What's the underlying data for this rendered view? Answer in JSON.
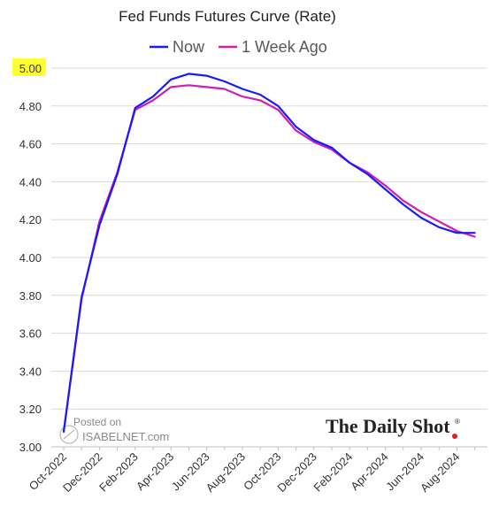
{
  "chart_data": {
    "type": "line",
    "title": "Fed Funds Futures Curve (Rate)",
    "xlabel": "",
    "ylabel": "",
    "x_categories": [
      "Oct-2022",
      "Nov-2022",
      "Dec-2022",
      "Jan-2023",
      "Feb-2023",
      "Mar-2023",
      "Apr-2023",
      "May-2023",
      "Jun-2023",
      "Jul-2023",
      "Aug-2023",
      "Sep-2023",
      "Oct-2023",
      "Nov-2023",
      "Dec-2023",
      "Jan-2024",
      "Feb-2024",
      "Mar-2024",
      "Apr-2024",
      "May-2024",
      "Jun-2024",
      "Jul-2024",
      "Aug-2024",
      "Sep-2024"
    ],
    "x_tick_labels": [
      "Oct-2022",
      "Dec-2022",
      "Feb-2023",
      "Apr-2023",
      "Jun-2023",
      "Aug-2023",
      "Oct-2023",
      "Dec-2023",
      "Feb-2024",
      "Apr-2024",
      "Jun-2024",
      "Aug-2024"
    ],
    "y_tick_labels": [
      "3.00",
      "3.20",
      "3.40",
      "3.60",
      "3.80",
      "4.00",
      "4.20",
      "4.40",
      "4.60",
      "4.80",
      "5.00"
    ],
    "ylim": [
      3.0,
      5.0
    ],
    "grid": true,
    "legend_position": "top",
    "highlighted_tick": "5.00",
    "highlight_color": "#ffff33",
    "series": [
      {
        "name": "Now",
        "color": "#1a1aff",
        "values": [
          3.08,
          3.79,
          4.17,
          4.44,
          4.79,
          4.85,
          4.94,
          4.97,
          4.96,
          4.93,
          4.89,
          4.86,
          4.8,
          4.69,
          4.62,
          4.58,
          4.5,
          4.44,
          4.36,
          4.28,
          4.21,
          4.16,
          4.13,
          4.13
        ]
      },
      {
        "name": "1 Week Ago",
        "color": "#d01fb0",
        "values": [
          3.08,
          3.78,
          4.19,
          4.45,
          4.78,
          4.83,
          4.9,
          4.91,
          4.9,
          4.89,
          4.85,
          4.83,
          4.78,
          4.67,
          4.61,
          4.57,
          4.5,
          4.45,
          4.38,
          4.3,
          4.24,
          4.19,
          4.14,
          4.11
        ]
      }
    ]
  },
  "watermark": {
    "line1": "Posted on",
    "line2": "ISABELNET.com"
  },
  "brand": {
    "text": "The Daily Shot",
    "mark": "®",
    "dot_color": "#e02020"
  }
}
